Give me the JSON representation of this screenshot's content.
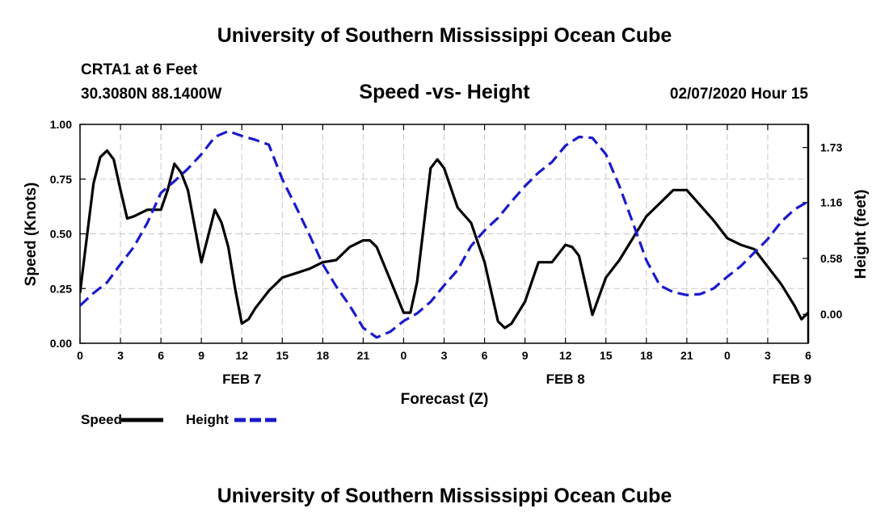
{
  "page": {
    "top_title": "University of Southern Mississippi Ocean Cube",
    "bottom_title": "University of Southern Mississippi Ocean Cube",
    "station": "CRTA1 at 6 Feet",
    "coords": "30.3080N 88.1400W",
    "subtitle": "Speed -vs- Height",
    "datetime": "02/07/2020 Hour 15"
  },
  "colors": {
    "speed": "#000000",
    "height": "#1a1acc",
    "grid": "#c8c8c8"
  },
  "chart_data": {
    "type": "line",
    "title": "Speed -vs- Height",
    "xlabel": "Forecast (Z)",
    "ylabel": "Speed (Knots)",
    "ylabel_right": "Height (feet)",
    "xlim": [
      0,
      54
    ],
    "ylim": [
      0,
      1
    ],
    "ylim_right": [
      -0.3,
      1.97
    ],
    "x_ticks": [
      0,
      3,
      6,
      9,
      12,
      15,
      18,
      21,
      24,
      27,
      30,
      33,
      36,
      39,
      42,
      45,
      48,
      51,
      54
    ],
    "x_tick_labels": [
      "0",
      "3",
      "6",
      "9",
      "12",
      "15",
      "18",
      "21",
      "0",
      "3",
      "6",
      "9",
      "12",
      "15",
      "18",
      "21",
      "0",
      "3",
      "6"
    ],
    "y_ticks": [
      0,
      0.25,
      0.5,
      0.75,
      1.0
    ],
    "y_tick_labels": [
      "0.00",
      "0.25",
      "0.50",
      "0.75",
      "1.00"
    ],
    "y_right_ticks": [
      0.0,
      0.58,
      1.16,
      1.73
    ],
    "y_right_tick_labels": [
      "0.00",
      "0.58",
      "1.16",
      "1.73"
    ],
    "day_labels": [
      {
        "x": 12,
        "label": "FEB 7"
      },
      {
        "x": 36,
        "label": "FEB 8"
      },
      {
        "x": 52.8,
        "label": "FEB 9"
      }
    ],
    "legend": [
      {
        "name": "Speed",
        "style": "solid"
      },
      {
        "name": "Height",
        "style": "dashed"
      }
    ],
    "series": [
      {
        "name": "Speed",
        "axis": "left",
        "x": [
          0,
          0.5,
          1,
          1.5,
          2,
          2.5,
          3,
          3.5,
          4,
          5,
          6,
          6.5,
          7,
          7.5,
          8,
          9,
          10,
          10.5,
          11,
          11.5,
          12,
          12.5,
          13,
          14,
          15,
          16,
          17,
          18,
          19,
          20,
          21,
          21.5,
          22,
          23,
          24,
          24.5,
          25,
          26,
          26.5,
          27,
          28,
          29,
          30,
          31,
          31.5,
          32,
          33,
          34,
          35,
          36,
          36.5,
          37,
          38,
          39,
          40,
          41,
          42,
          43,
          44,
          45,
          46,
          47,
          48,
          49,
          50,
          51,
          52,
          53,
          53.5,
          54
        ],
        "values": [
          0.23,
          0.48,
          0.73,
          0.85,
          0.88,
          0.84,
          0.7,
          0.57,
          0.58,
          0.61,
          0.61,
          0.7,
          0.82,
          0.78,
          0.7,
          0.37,
          0.61,
          0.55,
          0.44,
          0.25,
          0.09,
          0.11,
          0.16,
          0.24,
          0.3,
          0.32,
          0.34,
          0.37,
          0.38,
          0.44,
          0.47,
          0.47,
          0.44,
          0.29,
          0.14,
          0.14,
          0.28,
          0.8,
          0.84,
          0.8,
          0.62,
          0.55,
          0.37,
          0.1,
          0.07,
          0.09,
          0.19,
          0.37,
          0.37,
          0.45,
          0.44,
          0.4,
          0.13,
          0.3,
          0.38,
          0.48,
          0.58,
          0.64,
          0.7,
          0.7,
          0.63,
          0.56,
          0.48,
          0.45,
          0.43,
          0.35,
          0.27,
          0.17,
          0.11,
          0.14
        ]
      },
      {
        "name": "Height",
        "axis": "right",
        "x": [
          0,
          1,
          2,
          3,
          4,
          5,
          6,
          7,
          8,
          9,
          10,
          11,
          12,
          13,
          14,
          15,
          16,
          17,
          18,
          19,
          20,
          21,
          22,
          23,
          24,
          25,
          26,
          27,
          28,
          29,
          30,
          31,
          32,
          33,
          34,
          35,
          36,
          37,
          38,
          39,
          40,
          41,
          42,
          43,
          44,
          45,
          46,
          47,
          48,
          49,
          50,
          51,
          52,
          53,
          54
        ],
        "values": [
          0.09,
          0.22,
          0.33,
          0.52,
          0.7,
          0.95,
          1.26,
          1.38,
          1.51,
          1.66,
          1.84,
          1.9,
          1.85,
          1.81,
          1.76,
          1.4,
          1.12,
          0.83,
          0.52,
          0.29,
          0.09,
          -0.14,
          -0.24,
          -0.18,
          -0.07,
          0.01,
          0.13,
          0.3,
          0.46,
          0.71,
          0.87,
          1.0,
          1.17,
          1.33,
          1.47,
          1.58,
          1.75,
          1.84,
          1.83,
          1.66,
          1.33,
          0.95,
          0.56,
          0.3,
          0.23,
          0.2,
          0.21,
          0.27,
          0.39,
          0.5,
          0.64,
          0.78,
          0.96,
          1.09,
          1.17
        ]
      }
    ]
  }
}
